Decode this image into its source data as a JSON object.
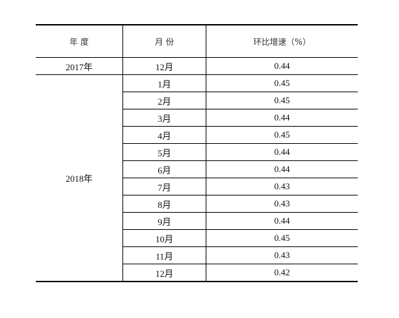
{
  "table": {
    "header": [
      "年 度",
      "月 份",
      "环比增速（%）"
    ],
    "groups": [
      {
        "year": "2017年",
        "rows": [
          [
            "12月",
            0.44
          ]
        ]
      },
      {
        "year": "2018年",
        "rows": [
          [
            "1月",
            0.45
          ],
          [
            "2月",
            0.45
          ],
          [
            "3月",
            0.44
          ],
          [
            "4月",
            0.45
          ],
          [
            "5月",
            0.44
          ],
          [
            "6月",
            0.44
          ],
          [
            "7月",
            0.43
          ],
          [
            "8月",
            0.43
          ],
          [
            "9月",
            0.44
          ],
          [
            "10月",
            0.45
          ],
          [
            "11月",
            0.43
          ],
          [
            "12月",
            0.42
          ]
        ]
      }
    ]
  }
}
